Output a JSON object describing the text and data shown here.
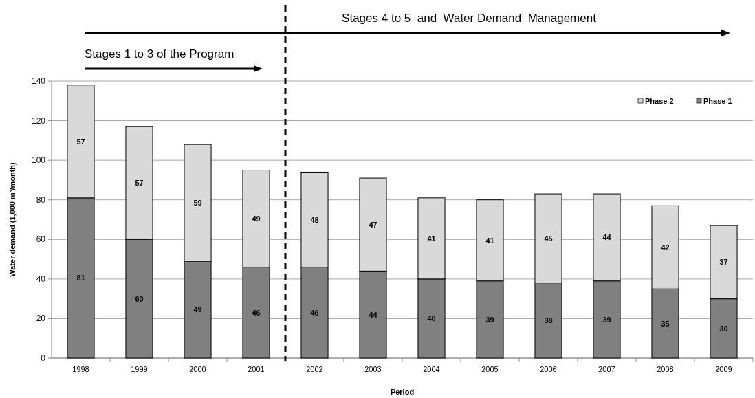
{
  "chart_data": {
    "type": "bar",
    "stacked": true,
    "xlabel": "Period",
    "ylabel": "Water demand (1,000 m³/month)",
    "x": [
      1998,
      1999,
      2000,
      2001,
      2002,
      2003,
      2004,
      2005,
      2006,
      2007,
      2008,
      2009
    ],
    "xlim": [
      1997.5,
      2009.5
    ],
    "xticks": [
      1998,
      1999,
      2000,
      2001,
      2002,
      2003,
      2004,
      2005,
      2006,
      2007,
      2008,
      2009
    ],
    "series": [
      {
        "name": "Phase 1",
        "color": "#808080",
        "values": [
          81,
          60,
          49,
          46,
          46,
          44,
          40,
          39,
          38,
          39,
          35,
          30
        ]
      },
      {
        "name": "Phase 2",
        "color": "#d9d9d9",
        "values": [
          57,
          57,
          59,
          49,
          48,
          47,
          41,
          41,
          45,
          44,
          42,
          37
        ]
      }
    ],
    "ylim": [
      0,
      140
    ],
    "yticks": [
      0,
      20,
      40,
      60,
      80,
      100,
      120,
      140
    ],
    "grid": "y",
    "legend": "top right",
    "data_labels": true,
    "ref_lines": [
      {
        "axis": "x",
        "value": 2001.5,
        "color": "#000000",
        "line_style": "dashed"
      }
    ],
    "annotations": [
      "Stages 1 to 3 of the Program",
      "Stages 4 to 5  and  Water Demand  Management"
    ]
  }
}
